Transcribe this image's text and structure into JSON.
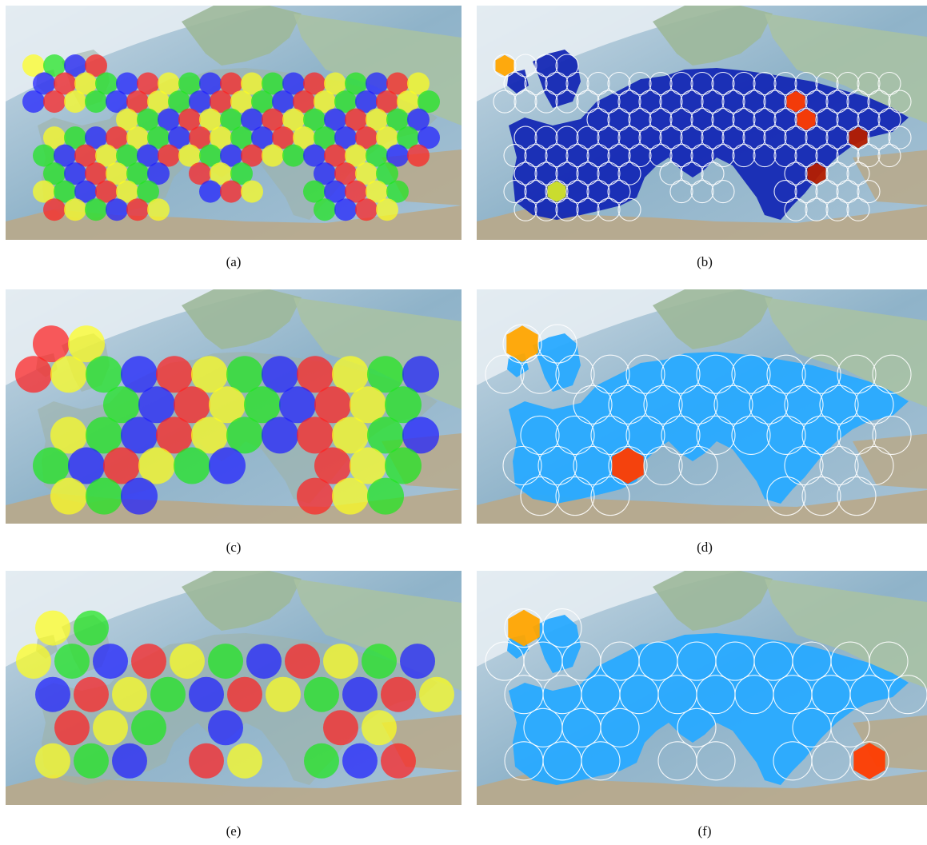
{
  "figure": {
    "panels": [
      {
        "id": "a",
        "caption": "(a)",
        "kind": "coloring"
      },
      {
        "id": "b",
        "caption": "(b)",
        "kind": "heat"
      },
      {
        "id": "c",
        "caption": "(c)",
        "kind": "coloring"
      },
      {
        "id": "d",
        "caption": "(d)",
        "kind": "heat"
      },
      {
        "id": "e",
        "caption": "(e)",
        "kind": "coloring"
      },
      {
        "id": "f",
        "caption": "(f)",
        "kind": "heat"
      }
    ],
    "colors": {
      "coloring": [
        "#ff2020",
        "#1e1eff",
        "#1ee61e",
        "#ffff1e"
      ],
      "heat_low": "#1428b4",
      "heat_mid": "#28aaff",
      "heat_high": "#28f0f0",
      "heat_hot": [
        "#ffa500",
        "#ff3c00",
        "#b41e00",
        "#d4e628"
      ],
      "ocean": "#8fb3c9",
      "land_far": "#9db89a"
    }
  }
}
